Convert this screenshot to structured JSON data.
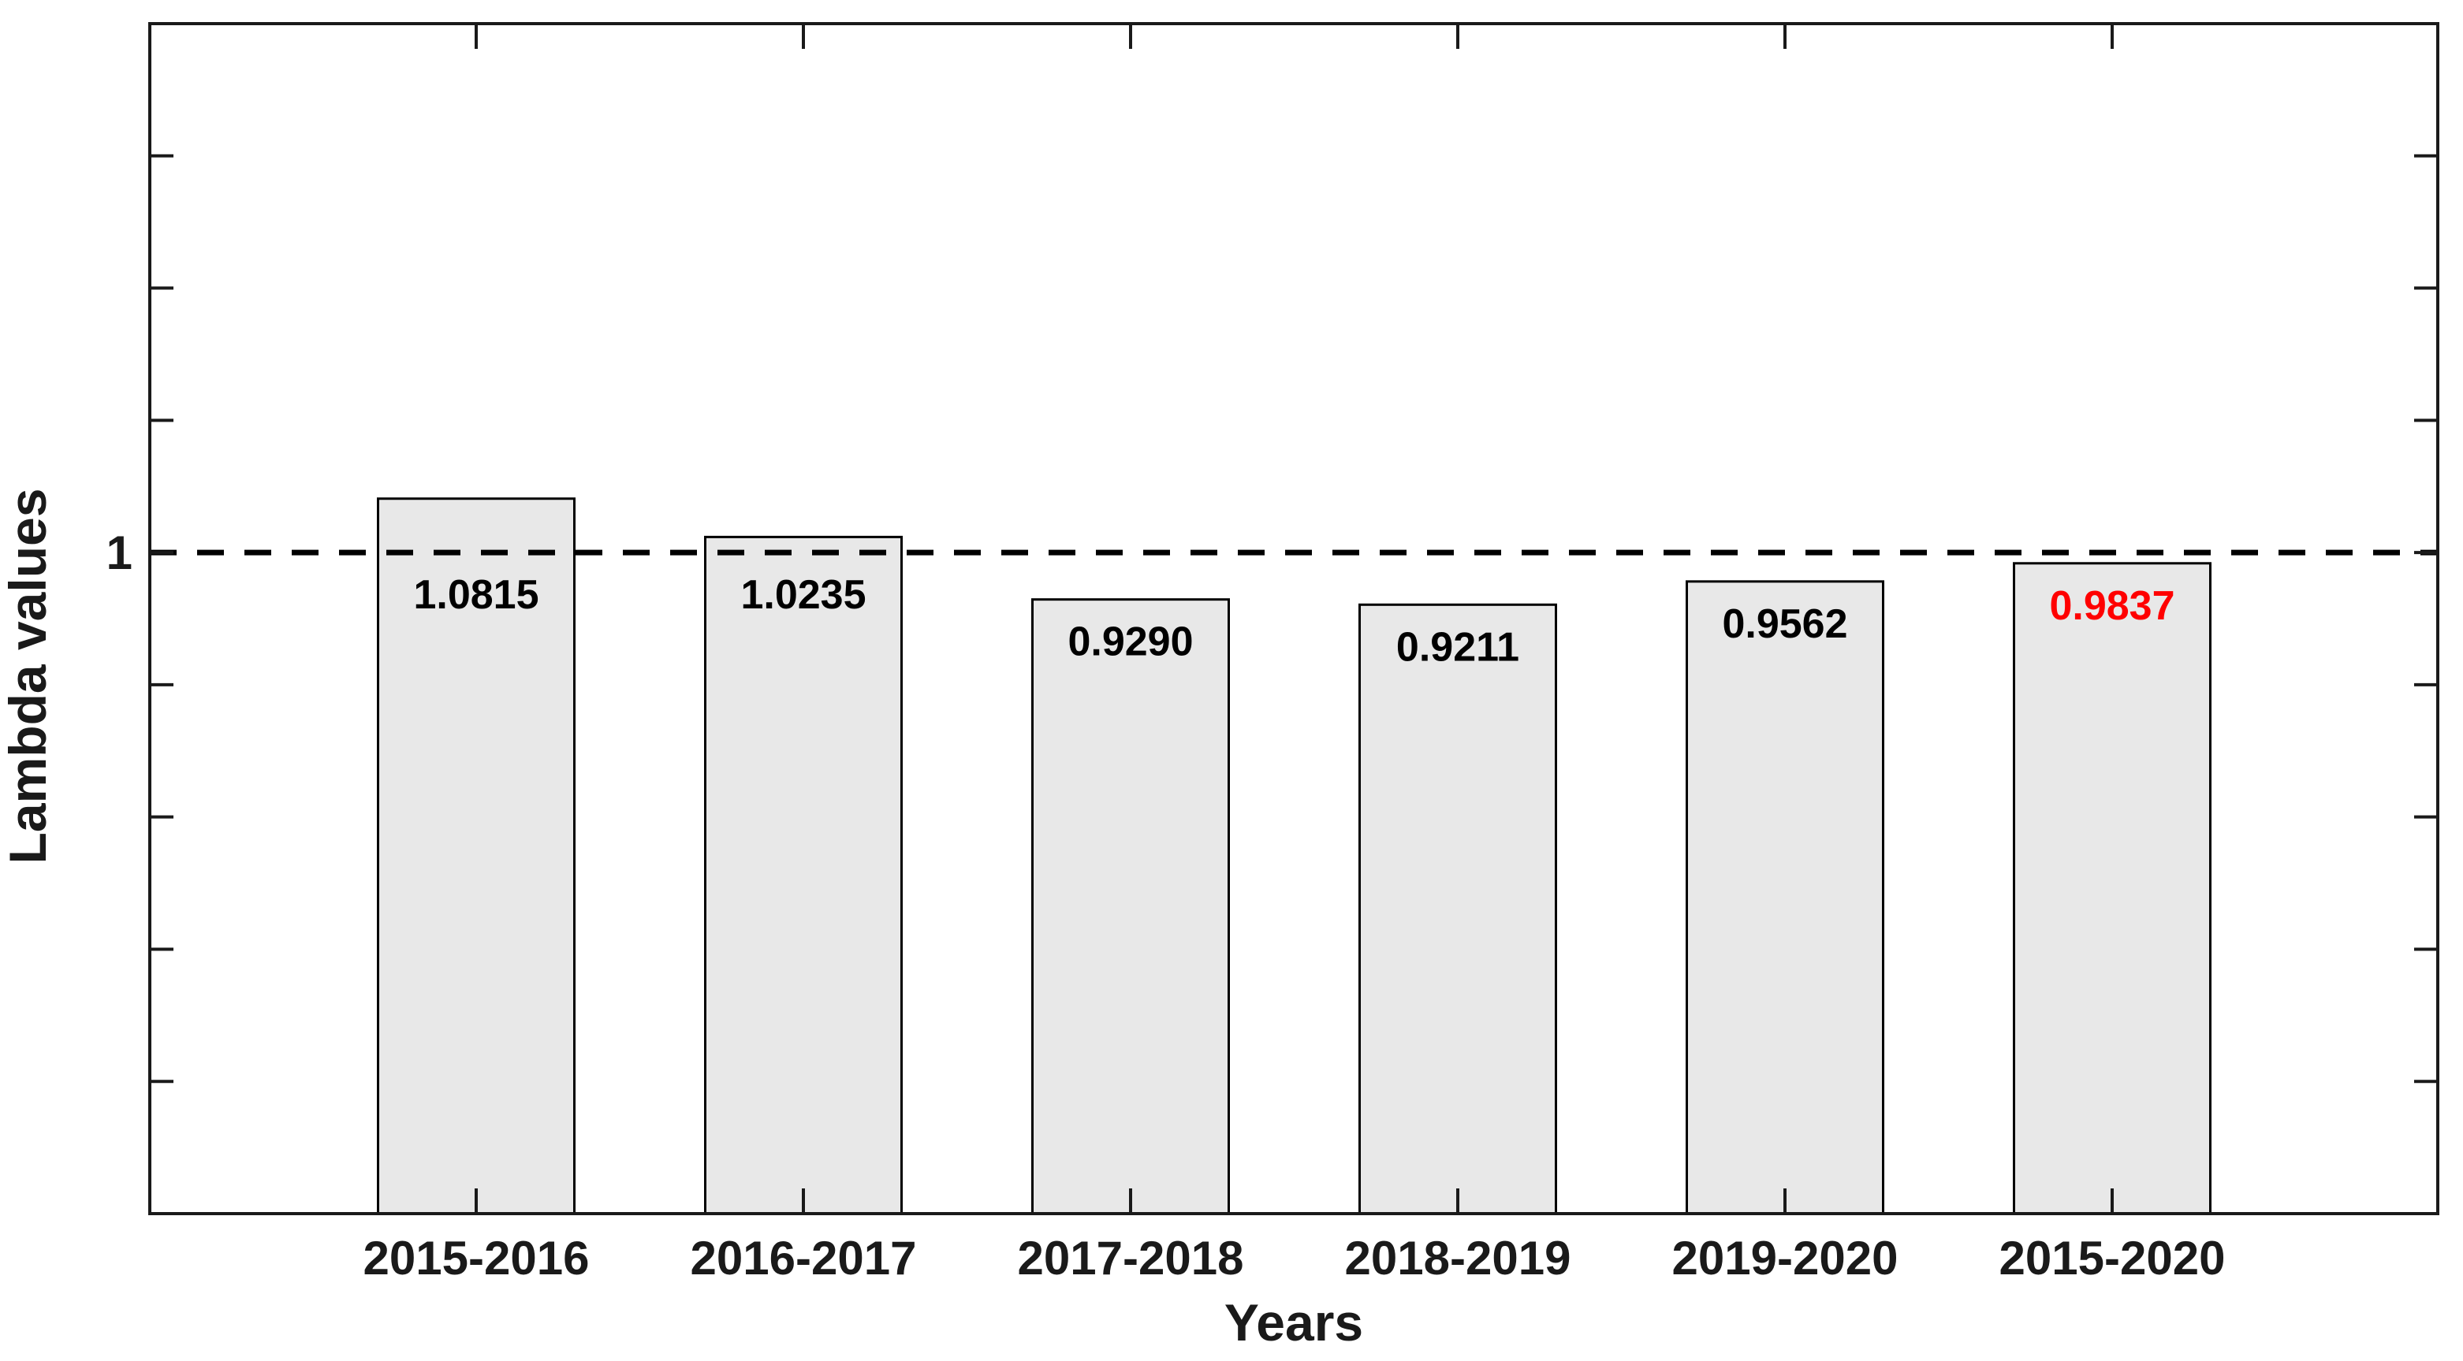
{
  "figure": {
    "background": "#ffffff"
  },
  "chart_data": {
    "type": "bar",
    "title": "",
    "xlabel": "Years",
    "ylabel": "Lambda values",
    "categories": [
      "2015-2016",
      "2016-2017",
      "2017-2018",
      "2018-2019",
      "2019-2020",
      "2015-2020"
    ],
    "values": [
      1.0815,
      1.0235,
      0.929,
      0.9211,
      0.9562,
      0.9837
    ],
    "value_labels": [
      "1.0815",
      "1.0235",
      "0.9290",
      "0.9211",
      "0.9562",
      "0.9837"
    ],
    "value_label_colors": [
      "#000000",
      "#000000",
      "#000000",
      "#000000",
      "#000000",
      "#ff0000"
    ],
    "ytick_label": "1",
    "reference_line": {
      "value": 1,
      "style": "dashed",
      "color": "#000000"
    },
    "ylim": [
      0,
      1.8
    ],
    "ytick_step": 0.2,
    "grid": false,
    "legend": null,
    "colors": {
      "bar_fill": "#e8e8e8",
      "bar_edge": "#000000",
      "axis": "#1a1a1a",
      "highlight_label": "#ff0000"
    }
  }
}
